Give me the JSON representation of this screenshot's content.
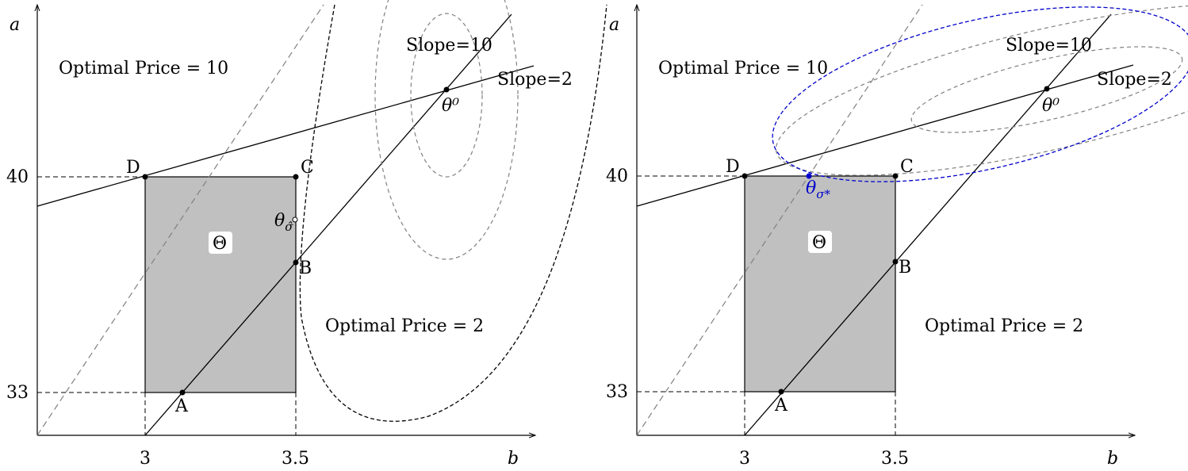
{
  "panels": [
    {
      "y_axis_label": "a",
      "x_axis_label": "b",
      "y_ticks": [
        "40",
        "33"
      ],
      "x_ticks": [
        "3",
        "3.5"
      ],
      "region_top": "Optimal Price = 10",
      "region_bottom": "Optimal Price = 2",
      "slope_10": "Slope=10",
      "slope_2": "Slope=2",
      "theta0": "θ⁰",
      "theta_hat_base": "θ",
      "theta_hat_sub": "σ̂",
      "theta_set": "Θ",
      "points": {
        "A": "A",
        "B": "B",
        "C": "C",
        "D": "D"
      }
    },
    {
      "y_axis_label": "a",
      "x_axis_label": "b",
      "y_ticks": [
        "40",
        "33"
      ],
      "x_ticks": [
        "3",
        "3.5"
      ],
      "region_top": "Optimal Price = 10",
      "region_bottom": "Optimal Price = 2",
      "slope_10": "Slope=10",
      "slope_2": "Slope=2",
      "theta0": "θ⁰",
      "theta_star_base": "θ",
      "theta_star_sub": "σ*",
      "theta_set": "Θ",
      "points": {
        "A": "A",
        "B": "B",
        "C": "C",
        "D": "D"
      }
    }
  ],
  "colors": {
    "rectangle_fill": "#c0c0c0",
    "dashed_gray": "#808080",
    "highlight_blue": "#0000cc",
    "ink": "#000000"
  }
}
